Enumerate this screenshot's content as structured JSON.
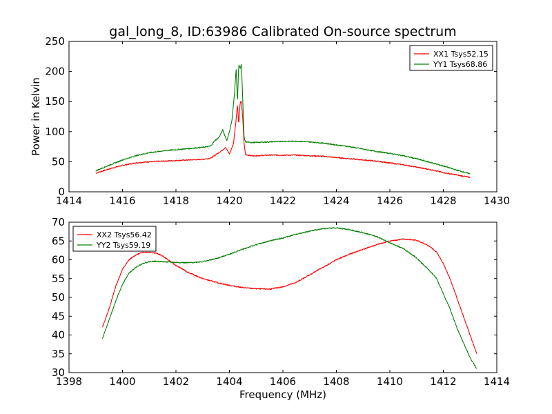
{
  "figure": {
    "title": "gal_long_8, ID:63986 Calibrated On-source spectrum"
  },
  "chart_data": [
    {
      "type": "line",
      "xlabel": "",
      "ylabel": "Power in Kelvin",
      "xlim": [
        1414,
        1430
      ],
      "ylim": [
        0,
        250
      ],
      "xticks": [
        1414,
        1416,
        1418,
        1420,
        1422,
        1424,
        1426,
        1428,
        1430
      ],
      "yticks": [
        0,
        50,
        100,
        150,
        200,
        250
      ],
      "grid": false,
      "legend": "top-right",
      "series": [
        {
          "name": "XX1 Tsys52.15",
          "color": "#ff0000",
          "x": [
            1415.0,
            1415.5,
            1416.0,
            1416.5,
            1417.0,
            1417.5,
            1418.0,
            1418.5,
            1419.0,
            1419.3,
            1419.5,
            1419.7,
            1419.85,
            1420.0,
            1420.15,
            1420.25,
            1420.3,
            1420.35,
            1420.4,
            1420.45,
            1420.5,
            1420.55,
            1420.6,
            1420.8,
            1421.0,
            1421.5,
            1422.0,
            1422.5,
            1423.0,
            1423.5,
            1424.0,
            1424.5,
            1425.0,
            1425.5,
            1426.0,
            1426.5,
            1427.0,
            1427.5,
            1428.0,
            1428.5,
            1429.0
          ],
          "y": [
            31,
            38,
            44,
            48,
            50,
            51,
            52,
            53,
            54,
            56,
            62,
            68,
            74,
            63,
            80,
            120,
            145,
            112,
            148,
            150,
            120,
            80,
            62,
            60,
            60,
            61,
            61,
            61,
            60,
            59,
            57,
            55,
            53,
            51,
            48,
            45,
            41,
            37,
            32,
            28,
            24
          ]
        },
        {
          "name": "YY1 Tsys68.86",
          "color": "#008000",
          "x": [
            1415.0,
            1415.5,
            1416.0,
            1416.5,
            1417.0,
            1417.5,
            1418.0,
            1418.5,
            1419.0,
            1419.3,
            1419.45,
            1419.6,
            1419.75,
            1419.9,
            1420.0,
            1420.1,
            1420.2,
            1420.25,
            1420.3,
            1420.35,
            1420.4,
            1420.45,
            1420.5,
            1420.55,
            1420.6,
            1420.8,
            1421.0,
            1421.5,
            1422.0,
            1422.5,
            1423.0,
            1423.5,
            1424.0,
            1424.5,
            1425.0,
            1425.5,
            1426.0,
            1426.5,
            1427.0,
            1427.5,
            1428.0,
            1428.5,
            1429.0
          ],
          "y": [
            35,
            44,
            53,
            60,
            65,
            68,
            70,
            72,
            74,
            76,
            85,
            90,
            103,
            85,
            100,
            120,
            170,
            205,
            150,
            212,
            205,
            212,
            150,
            90,
            83,
            82,
            82,
            83,
            84,
            84,
            83,
            81,
            78,
            75,
            71,
            67,
            64,
            60,
            55,
            49,
            43,
            36,
            30
          ]
        }
      ]
    },
    {
      "type": "line",
      "xlabel": "Frequency (MHz)",
      "ylabel": "",
      "xlim": [
        1398,
        1414
      ],
      "ylim": [
        30,
        70
      ],
      "xticks": [
        1398,
        1400,
        1402,
        1404,
        1406,
        1408,
        1410,
        1412,
        1414
      ],
      "yticks": [
        30,
        35,
        40,
        45,
        50,
        55,
        60,
        65,
        70
      ],
      "grid": false,
      "legend": "top-left",
      "series": [
        {
          "name": "XX2 Tsys56.42",
          "color": "#ff0000",
          "x": [
            1399.25,
            1399.5,
            1399.75,
            1400.0,
            1400.25,
            1400.5,
            1400.75,
            1401.0,
            1401.25,
            1401.5,
            1401.75,
            1402.0,
            1402.5,
            1403.0,
            1403.5,
            1404.0,
            1404.5,
            1405.0,
            1405.5,
            1406.0,
            1406.5,
            1407.0,
            1407.5,
            1408.0,
            1408.5,
            1409.0,
            1409.5,
            1410.0,
            1410.5,
            1411.0,
            1411.5,
            1411.75,
            1412.0,
            1412.25,
            1412.5,
            1412.75,
            1413.0,
            1413.25
          ],
          "y": [
            42,
            47,
            53,
            57.5,
            60,
            61.3,
            62,
            62,
            61.8,
            61,
            59.8,
            58.5,
            56.5,
            55,
            54,
            53.2,
            52.6,
            52.3,
            52.2,
            52.8,
            54,
            56,
            58,
            60,
            61.5,
            62.8,
            64,
            65,
            65.5,
            65.2,
            63.5,
            62,
            59,
            55,
            50,
            45,
            40,
            35
          ]
        },
        {
          "name": "YY2 Tsys59.19",
          "color": "#008000",
          "x": [
            1399.25,
            1399.5,
            1399.75,
            1400.0,
            1400.25,
            1400.5,
            1400.75,
            1401.0,
            1401.25,
            1401.5,
            1401.75,
            1402.0,
            1402.5,
            1403.0,
            1403.5,
            1404.0,
            1404.5,
            1405.0,
            1405.5,
            1406.0,
            1406.5,
            1407.0,
            1407.5,
            1408.0,
            1408.5,
            1409.0,
            1409.5,
            1410.0,
            1410.5,
            1411.0,
            1411.5,
            1411.75,
            1412.0,
            1412.25,
            1412.5,
            1412.75,
            1413.0,
            1413.25
          ],
          "y": [
            39,
            44,
            49,
            53.5,
            56.5,
            58,
            59,
            59.5,
            59.6,
            59.5,
            59.4,
            59.3,
            59.2,
            59.5,
            60.3,
            61.5,
            62.8,
            64,
            65,
            65.8,
            66.8,
            67.6,
            68.3,
            68.5,
            68,
            67.2,
            66.2,
            64.5,
            63,
            60.5,
            57,
            55,
            51,
            47,
            42,
            38,
            34,
            31
          ]
        }
      ]
    }
  ]
}
